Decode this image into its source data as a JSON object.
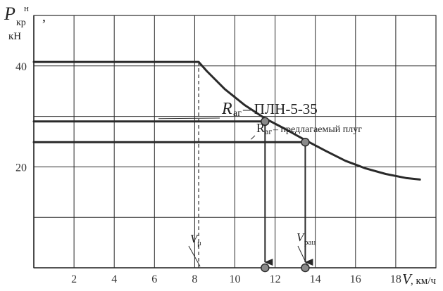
{
  "chart_data": {
    "type": "line",
    "title": "",
    "ylabel": {
      "main": "P",
      "sub": "кр",
      "sup": "н",
      "comma": ",",
      "unit": "кН"
    },
    "xlabel": {
      "main": "V",
      "unit": ", км/ч"
    },
    "xlim": [
      0,
      20
    ],
    "ylim": [
      0,
      50
    ],
    "grid": true,
    "x_ticks": [
      "2",
      "4",
      "6",
      "8",
      "10",
      "12",
      "14",
      "16",
      "18"
    ],
    "y_ticks": [
      "20",
      "40"
    ],
    "series": [
      {
        "x": [
          0,
          8.2,
          8.6,
          9.5,
          10.5,
          11.5,
          12.5,
          13.5,
          14.5,
          15.5,
          16.5,
          17.5,
          18.5,
          19.2
        ],
        "y": [
          40.8,
          40.8,
          39.0,
          35.4,
          32.2,
          29.6,
          27.5,
          25.3,
          23.2,
          21.2,
          19.7,
          18.6,
          17.8,
          17.5
        ]
      },
      {
        "x": [
          0,
          11.5
        ],
        "y": [
          29.0,
          29.0
        ]
      },
      {
        "x": [
          0,
          13.5
        ],
        "y": [
          24.9,
          24.9
        ]
      }
    ],
    "operating_points": [
      {
        "x": 11.5,
        "y": 29.0
      },
      {
        "x": 13.5,
        "y": 24.9
      }
    ],
    "annotations": {
      "rag_plnl": {
        "main": "R",
        "sub": "аг",
        "rest": " – ПЛН-5-35"
      },
      "rag_new": {
        "main": "R",
        "sub": "аг",
        "rest": " – предлагаемый плуг"
      },
      "v_mu": {
        "main": "V",
        "sub": "μ"
      },
      "v_rac": {
        "main": "V",
        "sub": "рац"
      }
    },
    "v_mu_x": 8.2
  },
  "colors": {
    "background": "#ffffff",
    "grid": "#2a2a2a",
    "curve": "#2a2a2a",
    "point_fill": "#8a8a8a"
  }
}
